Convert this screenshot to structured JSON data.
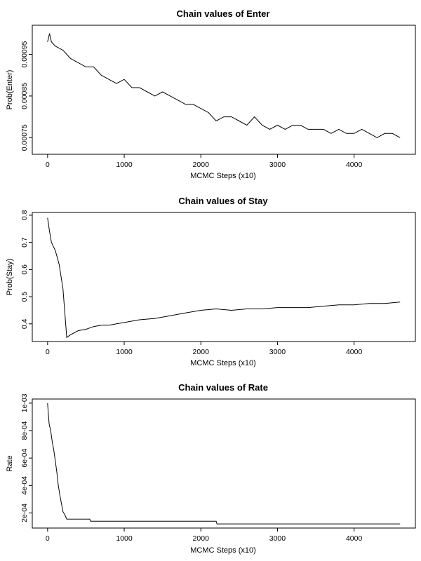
{
  "chart_data": [
    {
      "type": "line",
      "title": "Chain values of Enter",
      "xlabel": "MCMC Steps (x10)",
      "ylabel": "Prob(Enter)",
      "xlim": [
        -200,
        4800
      ],
      "ylim": [
        0.00071,
        0.00102
      ],
      "x_ticks": [
        0,
        1000,
        2000,
        3000,
        4000
      ],
      "y_ticks": [
        0.00075,
        0.00085,
        0.00095
      ],
      "y_tick_labels": [
        "0.00075",
        "0.00085",
        "0.00095"
      ],
      "grid": false,
      "series": [
        {
          "x": [
            0,
            25,
            50,
            100,
            200,
            300,
            400,
            500,
            600,
            700,
            800,
            900,
            1000,
            1100,
            1200,
            1300,
            1400,
            1500,
            1600,
            1700,
            1800,
            1900,
            2000,
            2100,
            2200,
            2300,
            2400,
            2500,
            2600,
            2700,
            2800,
            2900,
            3000,
            3100,
            3200,
            3300,
            3400,
            3500,
            3600,
            3700,
            3800,
            3900,
            4000,
            4100,
            4200,
            4300,
            4400,
            4500,
            4600
          ],
          "values": [
            0.00098,
            0.001,
            0.00098,
            0.00097,
            0.00096,
            0.00094,
            0.00093,
            0.00092,
            0.00092,
            0.0009,
            0.00089,
            0.00088,
            0.00089,
            0.00087,
            0.00087,
            0.00086,
            0.00085,
            0.00086,
            0.00085,
            0.00084,
            0.00083,
            0.00083,
            0.00082,
            0.00081,
            0.00079,
            0.0008,
            0.0008,
            0.00079,
            0.00078,
            0.0008,
            0.00078,
            0.00077,
            0.00078,
            0.00077,
            0.00078,
            0.00078,
            0.00077,
            0.00077,
            0.00077,
            0.00076,
            0.00077,
            0.00076,
            0.00076,
            0.00077,
            0.00076,
            0.00075,
            0.00076,
            0.00076,
            0.00075
          ]
        }
      ]
    },
    {
      "type": "line",
      "title": "Chain values of Stay",
      "xlabel": "MCMC Steps (x10)",
      "ylabel": "Prob(Stay)",
      "xlim": [
        -200,
        4800
      ],
      "ylim": [
        0.335,
        0.81
      ],
      "x_ticks": [
        0,
        1000,
        2000,
        3000,
        4000
      ],
      "y_ticks": [
        0.4,
        0.5,
        0.6,
        0.7,
        0.8
      ],
      "y_tick_labels": [
        "0.4",
        "0.5",
        "0.6",
        "0.7",
        "0.8"
      ],
      "grid": false,
      "series": [
        {
          "x": [
            0,
            25,
            50,
            100,
            150,
            200,
            230,
            250,
            300,
            400,
            500,
            600,
            700,
            800,
            900,
            1000,
            1200,
            1400,
            1600,
            1800,
            2000,
            2200,
            2400,
            2600,
            2800,
            3000,
            3200,
            3400,
            3600,
            3800,
            4000,
            4200,
            4400,
            4600
          ],
          "values": [
            0.79,
            0.74,
            0.7,
            0.67,
            0.62,
            0.53,
            0.42,
            0.35,
            0.36,
            0.375,
            0.38,
            0.39,
            0.395,
            0.395,
            0.4,
            0.405,
            0.415,
            0.42,
            0.43,
            0.44,
            0.45,
            0.455,
            0.45,
            0.455,
            0.455,
            0.46,
            0.46,
            0.46,
            0.465,
            0.47,
            0.47,
            0.475,
            0.475,
            0.48
          ]
        }
      ]
    },
    {
      "type": "line",
      "title": "Chain values of Rate",
      "xlabel": "MCMC Steps (x10)",
      "ylabel": "Rate",
      "xlim": [
        -200,
        4800
      ],
      "ylim": [
        9e-05,
        0.00103
      ],
      "x_ticks": [
        0,
        1000,
        2000,
        3000,
        4000
      ],
      "y_ticks": [
        0.0002,
        0.0004,
        0.0006,
        0.0008,
        0.001
      ],
      "y_tick_labels": [
        "2e-04",
        "4e-04",
        "6e-04",
        "8e-04",
        "1e-03"
      ],
      "grid": false,
      "series": [
        {
          "x": [
            0,
            10,
            20,
            40,
            60,
            80,
            100,
            120,
            140,
            160,
            180,
            200,
            230,
            250,
            550,
            560,
            2200,
            2210,
            4600
          ],
          "values": [
            0.001,
            0.00092,
            0.00085,
            0.0008,
            0.00072,
            0.00066,
            0.00058,
            0.0005,
            0.0004,
            0.00033,
            0.00027,
            0.00021,
            0.00018,
            0.000155,
            0.000155,
            0.00014,
            0.00014,
            0.00012,
            0.00012
          ]
        }
      ]
    }
  ]
}
